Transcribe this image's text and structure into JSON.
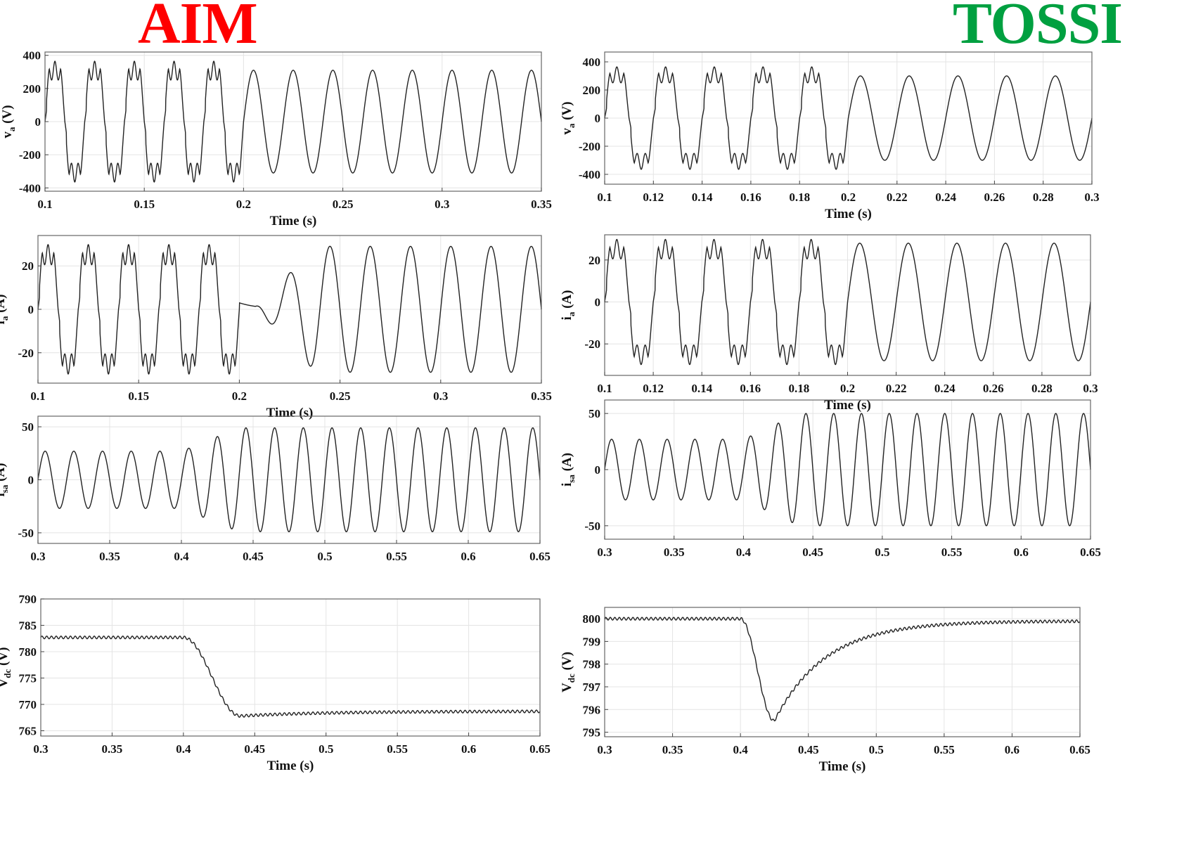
{
  "titles": {
    "left": "AIM",
    "left_color": "#ff0000",
    "right": "TOSSI",
    "right_color": "#00a040"
  },
  "chart_data": [
    {
      "id": "aim-va",
      "type": "line",
      "column": "AIM",
      "xlabel": "Time (s)",
      "ylabel": "v_a (V)",
      "xlim": [
        0.1,
        0.35
      ],
      "ylim": [
        -420,
        420
      ],
      "xticks": [
        0.1,
        0.15,
        0.2,
        0.25,
        0.3,
        0.35
      ],
      "xtick_labels": [
        "0.1",
        "0.15",
        "0.2",
        "0.25",
        "0.3",
        "0.35"
      ],
      "yticks": [
        -400,
        -200,
        0,
        200,
        400
      ],
      "ytick_labels": [
        "-400",
        "-200",
        "0",
        "200",
        "400"
      ],
      "grid": true,
      "series": [
        {
          "kind": "piecewise",
          "frequency_hz": 50,
          "segments": [
            {
              "x0": 0.1,
              "x1": 0.2,
              "shape": "distorted",
              "amplitude": 330
            },
            {
              "x0": 0.2,
              "x1": 0.35,
              "shape": "sine",
              "amplitude": 310
            }
          ]
        }
      ]
    },
    {
      "id": "aim-ia",
      "type": "line",
      "column": "AIM",
      "xlabel": "Time (s)",
      "ylabel": "i_a (A)",
      "xlim": [
        0.1,
        0.35
      ],
      "ylim": [
        -34,
        34
      ],
      "xticks": [
        0.1,
        0.15,
        0.2,
        0.25,
        0.3,
        0.35
      ],
      "xtick_labels": [
        "0.1",
        "0.15",
        "0.2",
        "0.25",
        "0.3",
        "0.35"
      ],
      "yticks": [
        -20,
        0,
        20
      ],
      "ytick_labels": [
        "-20",
        "0",
        "20"
      ],
      "grid": true,
      "series": [
        {
          "kind": "piecewise",
          "frequency_hz": 50,
          "segments": [
            {
              "x0": 0.1,
              "x1": 0.2,
              "shape": "distorted",
              "amplitude": 27
            },
            {
              "x0": 0.2,
              "x1": 0.35,
              "shape": "sine-transient",
              "amplitude": 29
            }
          ]
        }
      ]
    },
    {
      "id": "aim-isa",
      "type": "line",
      "column": "AIM",
      "xlabel": "",
      "ylabel": "i_sa (A)",
      "xlim": [
        0.3,
        0.65
      ],
      "ylim": [
        -60,
        60
      ],
      "xticks": [
        0.3,
        0.35,
        0.4,
        0.45,
        0.5,
        0.55,
        0.6,
        0.65
      ],
      "xtick_labels": [
        "0.3",
        "0.35",
        "0.4",
        "0.45",
        "0.5",
        "0.55",
        "0.6",
        "0.65"
      ],
      "yticks": [
        -50,
        0,
        50
      ],
      "ytick_labels": [
        "-50",
        "0",
        "50"
      ],
      "grid": true,
      "series": [
        {
          "kind": "piecewise",
          "frequency_hz": 50,
          "segments": [
            {
              "x0": 0.3,
              "x1": 0.4,
              "shape": "sine",
              "amplitude": 27
            },
            {
              "x0": 0.4,
              "x1": 0.65,
              "shape": "sine-step",
              "amplitude": 49
            }
          ]
        }
      ]
    },
    {
      "id": "aim-vdc",
      "type": "line",
      "column": "AIM",
      "xlabel": "Time (s)",
      "ylabel": "V_dc (V)",
      "xlim": [
        0.3,
        0.65
      ],
      "ylim": [
        764,
        790
      ],
      "xticks": [
        0.3,
        0.35,
        0.4,
        0.45,
        0.5,
        0.55,
        0.6,
        0.65
      ],
      "xtick_labels": [
        "0.3",
        "0.35",
        "0.4",
        "0.45",
        "0.5",
        "0.55",
        "0.6",
        "0.65"
      ],
      "yticks": [
        765,
        770,
        775,
        780,
        785,
        790
      ],
      "ytick_labels": [
        "765",
        "770",
        "775",
        "780",
        "785",
        "790"
      ],
      "grid": true,
      "series": [
        {
          "kind": "dc-step",
          "level_before": 782.7,
          "level_after": 768.7,
          "minimum": 767.8,
          "t_step": 0.4,
          "t_minimum": 0.44,
          "ripple": 0.25
        }
      ]
    },
    {
      "id": "tossi-va",
      "type": "line",
      "column": "TOSSI",
      "xlabel": "Time (s)",
      "ylabel": "v_a (V)",
      "xlim": [
        0.1,
        0.3
      ],
      "ylim": [
        -470,
        470
      ],
      "xticks": [
        0.1,
        0.12,
        0.14,
        0.16,
        0.18,
        0.2,
        0.22,
        0.24,
        0.26,
        0.28,
        0.3
      ],
      "xtick_labels": [
        "0.1",
        "0.12",
        "0.14",
        "0.16",
        "0.18",
        "0.2",
        "0.22",
        "0.24",
        "0.26",
        "0.28",
        "0.3"
      ],
      "yticks": [
        -400,
        -200,
        0,
        200,
        400
      ],
      "ytick_labels": [
        "-400",
        "-200",
        "0",
        "200",
        "400"
      ],
      "grid": true,
      "series": [
        {
          "kind": "piecewise",
          "frequency_hz": 50,
          "segments": [
            {
              "x0": 0.1,
              "x1": 0.2,
              "shape": "distorted",
              "amplitude": 330
            },
            {
              "x0": 0.2,
              "x1": 0.3,
              "shape": "sine",
              "amplitude": 300
            }
          ]
        }
      ]
    },
    {
      "id": "tossi-ia",
      "type": "line",
      "column": "TOSSI",
      "xlabel": "Time (s)",
      "ylabel": "i_a (A)",
      "xlim": [
        0.1,
        0.3
      ],
      "ylim": [
        -35,
        32
      ],
      "xticks": [
        0.1,
        0.12,
        0.14,
        0.16,
        0.18,
        0.2,
        0.22,
        0.24,
        0.26,
        0.28,
        0.3
      ],
      "xtick_labels": [
        "0.1",
        "0.12",
        "0.14",
        "0.16",
        "0.18",
        "0.2",
        "0.22",
        "0.24",
        "0.26",
        "0.28",
        "0.3"
      ],
      "yticks": [
        -20,
        0,
        20
      ],
      "ytick_labels": [
        "-20",
        "0",
        "20"
      ],
      "grid": true,
      "series": [
        {
          "kind": "piecewise",
          "frequency_hz": 50,
          "segments": [
            {
              "x0": 0.1,
              "x1": 0.2,
              "shape": "distorted",
              "amplitude": 27
            },
            {
              "x0": 0.2,
              "x1": 0.3,
              "shape": "sine",
              "amplitude": 28
            }
          ]
        }
      ]
    },
    {
      "id": "tossi-isa",
      "type": "line",
      "column": "TOSSI",
      "xlabel": "",
      "ylabel": "i_sa (A)",
      "xlim": [
        0.3,
        0.65
      ],
      "ylim": [
        -62,
        62
      ],
      "xticks": [
        0.3,
        0.35,
        0.4,
        0.45,
        0.5,
        0.55,
        0.6,
        0.65
      ],
      "xtick_labels": [
        "0.3",
        "0.35",
        "0.4",
        "0.45",
        "0.5",
        "0.55",
        "0.6",
        "0.65"
      ],
      "yticks": [
        -50,
        0,
        50
      ],
      "ytick_labels": [
        "-50",
        "0",
        "50"
      ],
      "grid": true,
      "series": [
        {
          "kind": "piecewise",
          "frequency_hz": 50,
          "segments": [
            {
              "x0": 0.3,
              "x1": 0.4,
              "shape": "sine",
              "amplitude": 27
            },
            {
              "x0": 0.4,
              "x1": 0.65,
              "shape": "sine-step",
              "amplitude": 50
            }
          ]
        }
      ]
    },
    {
      "id": "tossi-vdc",
      "type": "line",
      "column": "TOSSI",
      "xlabel": "Time (s)",
      "ylabel": "V_dc (V)",
      "xlim": [
        0.3,
        0.65
      ],
      "ylim": [
        794.8,
        800.5
      ],
      "xticks": [
        0.3,
        0.35,
        0.4,
        0.45,
        0.5,
        0.55,
        0.6,
        0.65
      ],
      "xtick_labels": [
        "0.3",
        "0.35",
        "0.4",
        "0.45",
        "0.5",
        "0.55",
        "0.6",
        "0.65"
      ],
      "yticks": [
        795,
        796,
        797,
        798,
        799,
        800
      ],
      "ytick_labels": [
        "795",
        "796",
        "797",
        "798",
        "799",
        "800"
      ],
      "grid": true,
      "series": [
        {
          "kind": "dc-step",
          "level_before": 800.0,
          "level_after": 799.9,
          "minimum": 795.5,
          "t_step": 0.4,
          "t_minimum": 0.425,
          "ripple": 0.06
        }
      ]
    }
  ]
}
